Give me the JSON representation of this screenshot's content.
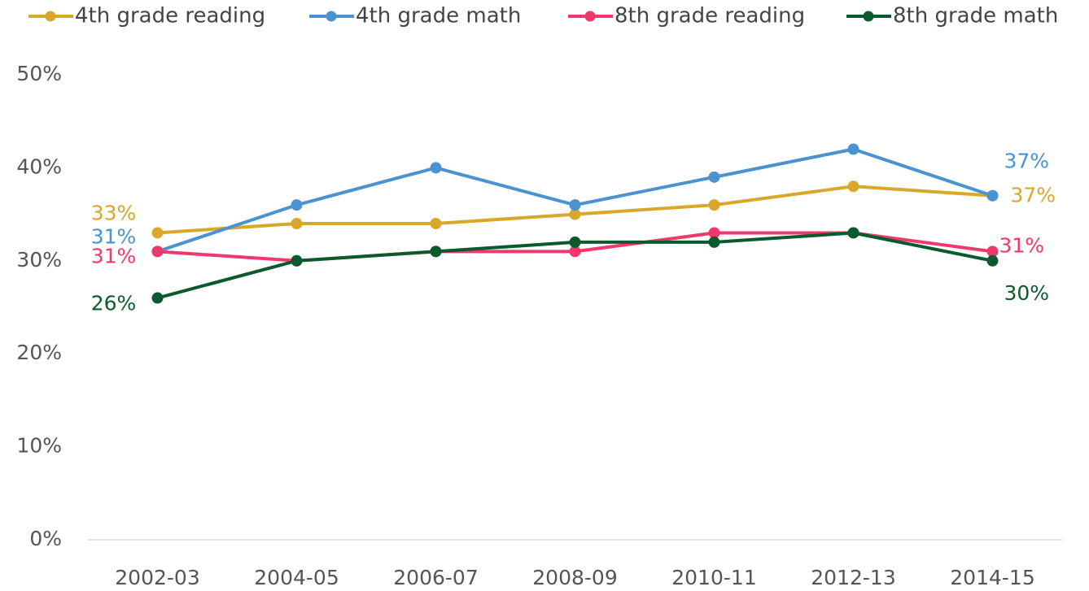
{
  "chart_data": {
    "type": "line",
    "categories": [
      "2002-03",
      "2004-05",
      "2006-07",
      "2008-09",
      "2010-11",
      "2012-13",
      "2014-15"
    ],
    "series": [
      {
        "name": "4th grade reading",
        "color": "#d9a72a",
        "values": [
          33,
          34,
          34,
          35,
          36,
          38,
          37
        ],
        "value_labels": [
          "33%",
          null,
          null,
          null,
          null,
          null,
          "37%"
        ]
      },
      {
        "name": "4th grade math",
        "color": "#4a93d0",
        "values": [
          31,
          36,
          40,
          36,
          39,
          42,
          37
        ],
        "value_labels": [
          "31%",
          null,
          null,
          null,
          null,
          null,
          "37%"
        ]
      },
      {
        "name": "8th grade reading",
        "color": "#f0386b",
        "values": [
          31,
          30,
          31,
          31,
          33,
          33,
          31
        ],
        "value_labels": [
          "31%",
          null,
          null,
          null,
          null,
          null,
          "31%"
        ]
      },
      {
        "name": "8th grade math",
        "color": "#0b5a2e",
        "values": [
          26,
          30,
          31,
          32,
          32,
          33,
          30
        ],
        "value_labels": [
          "26%",
          null,
          null,
          null,
          null,
          null,
          "30%"
        ]
      }
    ],
    "ylim": [
      0,
      50
    ],
    "yticks": [
      {
        "value": 0,
        "label": "0%"
      },
      {
        "value": 10,
        "label": "10%"
      },
      {
        "value": 20,
        "label": "20%"
      },
      {
        "value": 30,
        "label": "30%"
      },
      {
        "value": 40,
        "label": "40%"
      },
      {
        "value": 50,
        "label": "50%"
      }
    ],
    "grid": false,
    "legend": "top"
  }
}
